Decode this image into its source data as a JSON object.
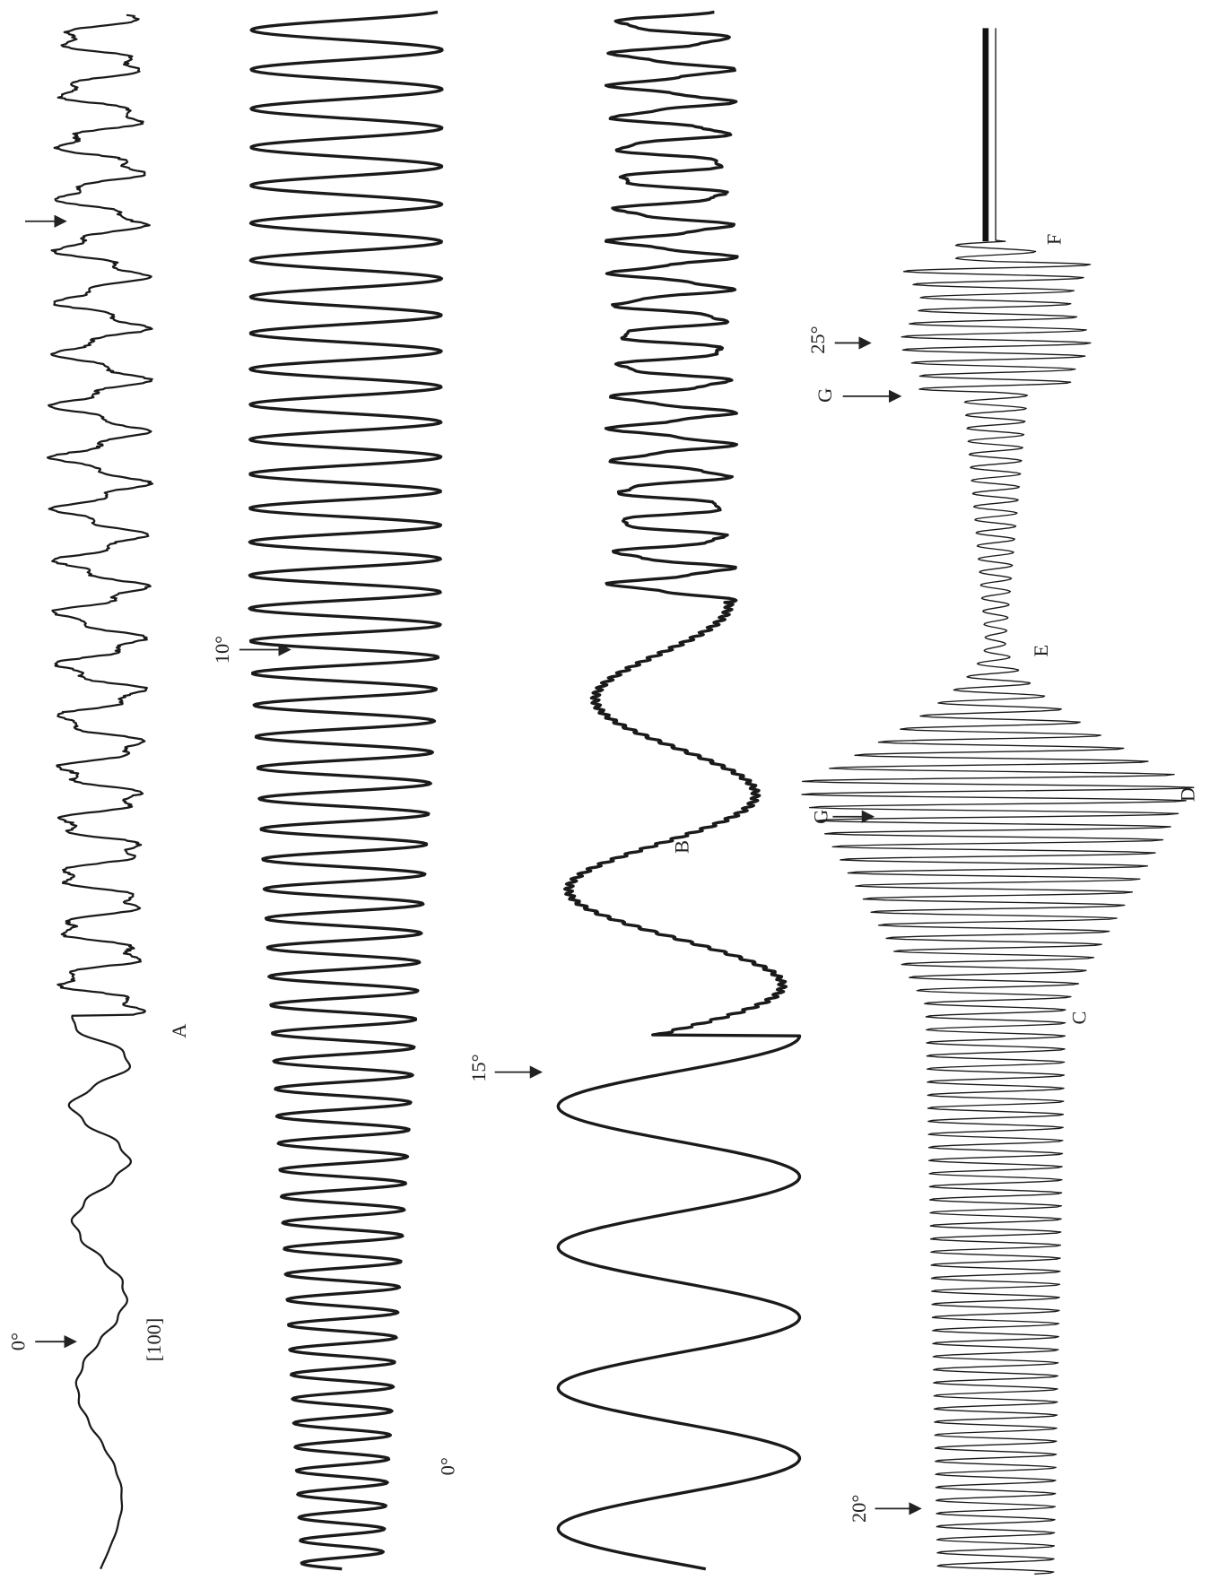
{
  "figure": {
    "labels": {
      "a_angle": "0°",
      "a_direction": "[100]",
      "a_name": "A",
      "t2_angle": "10°",
      "t2_angle_bottom": "0°",
      "b_angle": "15°",
      "b_name": "B",
      "c_angle": "20°",
      "c_name": "C",
      "g_lower": "G",
      "d_name": "D",
      "e_name": "E",
      "g_upper": "G",
      "f_angle": "25°",
      "f_name": "F"
    }
  }
}
